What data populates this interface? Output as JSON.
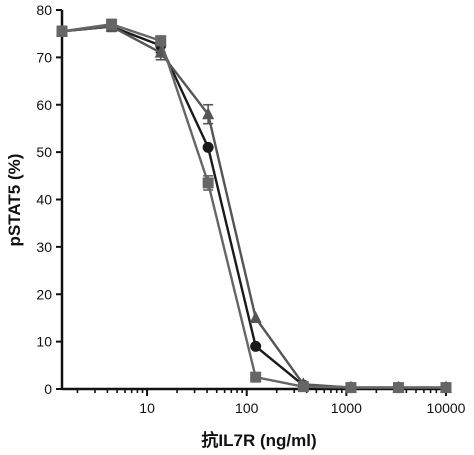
{
  "chart_data": {
    "type": "line",
    "title": "",
    "xlabel": "抗IL7R (ng/ml)",
    "ylabel": "pSTAT5 (%)",
    "x_scale": "log",
    "xlim": [
      1.4,
      10000
    ],
    "ylim": [
      0,
      80
    ],
    "x_ticks": [
      10,
      100,
      1000,
      10000
    ],
    "x_tick_labels": [
      "10",
      "100",
      "1000",
      "10000"
    ],
    "y_ticks": [
      0,
      10,
      20,
      30,
      40,
      50,
      60,
      70,
      80
    ],
    "y_tick_labels": [
      "0",
      "10",
      "20",
      "30",
      "40",
      "50",
      "60",
      "70",
      "80"
    ],
    "grid": false,
    "legend": "none",
    "series": [
      {
        "marker": "circle",
        "color": "#1a1a1a",
        "x": [
          1.4,
          4.4,
          13.7,
          41,
          123,
          370,
          1111,
          3333,
          10000
        ],
        "y": [
          75.5,
          76.5,
          72.5,
          51,
          9,
          0.8,
          0.3,
          0.3,
          0.3
        ],
        "err": [
          1,
          1,
          1.5,
          0,
          0,
          0,
          0,
          0,
          0
        ]
      },
      {
        "marker": "triangle",
        "color": "#555555",
        "x": [
          1.4,
          4.4,
          13.7,
          41,
          123,
          370,
          1111,
          3333,
          10000
        ],
        "y": [
          75.5,
          76.5,
          71,
          58,
          15,
          1,
          0.3,
          0.3,
          0.3
        ],
        "err": [
          1,
          1,
          1.5,
          2,
          0,
          0,
          0,
          0,
          0
        ]
      },
      {
        "marker": "square",
        "color": "#666666",
        "x": [
          1.4,
          4.4,
          13.7,
          41,
          123,
          370,
          1111,
          3333,
          10000
        ],
        "y": [
          75.5,
          77,
          73.5,
          43.5,
          2.5,
          0.5,
          0.3,
          0.3,
          0.3
        ],
        "err": [
          1,
          1,
          1,
          1.5,
          0,
          0,
          0,
          0,
          0
        ]
      }
    ]
  }
}
